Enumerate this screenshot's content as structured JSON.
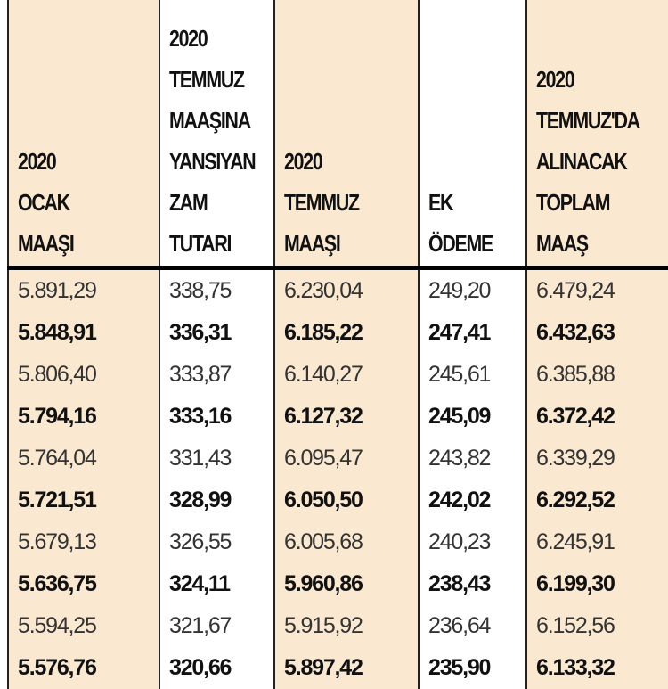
{
  "colors": {
    "beige_column": "#fbe8d0",
    "white_column": "#ffffff",
    "rule": "#000000"
  },
  "headers": [
    "2020\nOCAK\nMAAŞI",
    "2020\nTEMMUZ\nMAAŞINA\nYANSIYAN\nZAM\nTUTARI",
    "2020\nTEMMUZ\nMAAŞI",
    "EK\nÖDEME",
    "2020\nTEMMUZ'DA\nALINACAK\nTOPLAM\nMAAŞ"
  ],
  "rows": [
    [
      "5.891,29",
      "338,75",
      "6.230,04",
      "249,20",
      "6.479,24"
    ],
    [
      "5.848,91",
      "336,31",
      "6.185,22",
      "247,41",
      "6.432,63"
    ],
    [
      "5.806,40",
      "333,87",
      "6.140,27",
      "245,61",
      "6.385,88"
    ],
    [
      "5.794,16",
      "333,16",
      "6.127,32",
      "245,09",
      "6.372,42"
    ],
    [
      "5.764,04",
      "331,43",
      "6.095,47",
      "243,82",
      "6.339,29"
    ],
    [
      "5.721,51",
      "328,99",
      "6.050,50",
      "242,02",
      "6.292,52"
    ],
    [
      "5.679,13",
      "326,55",
      "6.005,68",
      "240,23",
      "6.245,91"
    ],
    [
      "5.636,75",
      "324,11",
      "5.960,86",
      "238,43",
      "6.199,30"
    ],
    [
      "5.594,25",
      "321,67",
      "5.915,92",
      "236,64",
      "6.152,56"
    ],
    [
      "5.576,76",
      "320,66",
      "5.897,42",
      "235,90",
      "6.133,32"
    ]
  ]
}
